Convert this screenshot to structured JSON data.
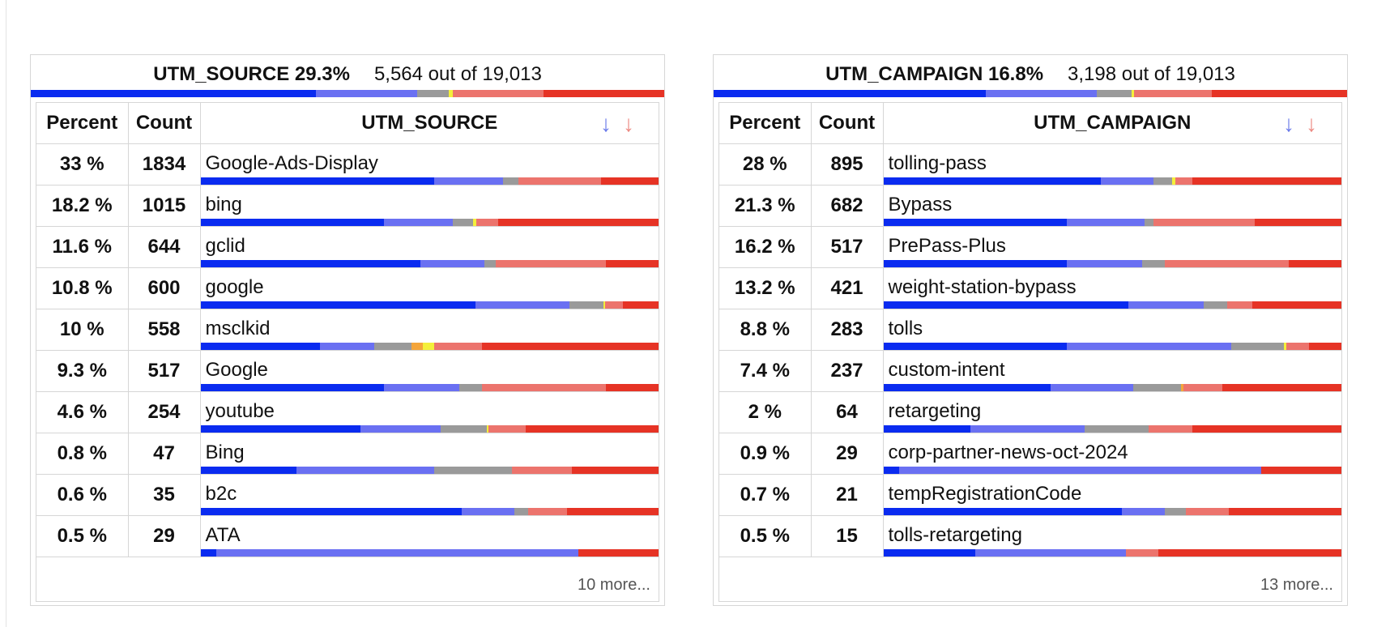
{
  "colors": {
    "accent_blue": "#0a2bf0",
    "light_blue": "#6a70f2",
    "gray": "#9a9a9a",
    "orange": "#f4a53a",
    "yellow": "#f4ef3a",
    "salmon": "#ec746d",
    "red": "#e63325"
  },
  "panels": [
    {
      "title": "UTM_SOURCE 29.3%",
      "fraction": "5,564 out of 19,013",
      "distribution": [
        [
          "blue",
          45
        ],
        [
          "lblue",
          16
        ],
        [
          "gray",
          5
        ],
        [
          "yellow",
          0.6
        ],
        [
          "salmon",
          14.4
        ],
        [
          "red",
          19
        ]
      ],
      "columns": {
        "percent": "Percent",
        "count": "Count",
        "value": "UTM_SOURCE"
      },
      "sort_desc_icon": "arrow-down-icon",
      "sort_asc_icon": "arrow-down-icon",
      "rows": [
        {
          "percent": "33 %",
          "count": "1834",
          "value": "Google-Ads-Display",
          "distribution": [
            [
              "blue",
              51
            ],
            [
              "lblue",
              15
            ],
            [
              "gray",
              3.5
            ],
            [
              "salmon",
              18
            ],
            [
              "red",
              12.5
            ]
          ]
        },
        {
          "percent": "18.2 %",
          "count": "1015",
          "value": "bing",
          "distribution": [
            [
              "blue",
              40
            ],
            [
              "lblue",
              15
            ],
            [
              "gray",
              4.5
            ],
            [
              "yellow",
              0.8
            ],
            [
              "salmon",
              4.7
            ],
            [
              "red",
              35
            ]
          ]
        },
        {
          "percent": "11.6 %",
          "count": "644",
          "value": "gclid",
          "distribution": [
            [
              "blue",
              48
            ],
            [
              "lblue",
              14
            ],
            [
              "gray",
              2.5
            ],
            [
              "salmon",
              24
            ],
            [
              "red",
              11.5
            ]
          ]
        },
        {
          "percent": "10.8 %",
          "count": "600",
          "value": "google",
          "distribution": [
            [
              "blue",
              60
            ],
            [
              "lblue",
              20.5
            ],
            [
              "gray",
              7.5
            ],
            [
              "yellow",
              0.4
            ],
            [
              "salmon",
              3.8
            ],
            [
              "red",
              7.8
            ]
          ]
        },
        {
          "percent": "10 %",
          "count": "558",
          "value": "msclkid",
          "distribution": [
            [
              "blue",
              26
            ],
            [
              "lblue",
              12
            ],
            [
              "gray",
              8
            ],
            [
              "orange",
              2.5
            ],
            [
              "yellow",
              2.5
            ],
            [
              "salmon",
              10.5
            ],
            [
              "red",
              38.5
            ]
          ]
        },
        {
          "percent": "9.3 %",
          "count": "517",
          "value": "Google",
          "distribution": [
            [
              "blue",
              40
            ],
            [
              "lblue",
              16.5
            ],
            [
              "gray",
              5
            ],
            [
              "salmon",
              27
            ],
            [
              "red",
              11.5
            ]
          ]
        },
        {
          "percent": "4.6 %",
          "count": "254",
          "value": "youtube",
          "distribution": [
            [
              "blue",
              35
            ],
            [
              "lblue",
              17.5
            ],
            [
              "gray",
              10
            ],
            [
              "yellow",
              0.4
            ],
            [
              "salmon",
              8.1
            ],
            [
              "red",
              29
            ]
          ]
        },
        {
          "percent": "0.8 %",
          "count": "47",
          "value": "Bing",
          "distribution": [
            [
              "blue",
              21
            ],
            [
              "lblue",
              30
            ],
            [
              "gray",
              17
            ],
            [
              "salmon",
              13
            ],
            [
              "red",
              19
            ]
          ]
        },
        {
          "percent": "0.6 %",
          "count": "35",
          "value": "b2c",
          "distribution": [
            [
              "blue",
              57
            ],
            [
              "lblue",
              11.5
            ],
            [
              "gray",
              3
            ],
            [
              "salmon",
              8.5
            ],
            [
              "red",
              20
            ]
          ]
        },
        {
          "percent": "0.5 %",
          "count": "29",
          "value": "ATA",
          "distribution": [
            [
              "blue",
              3.5
            ],
            [
              "lblue",
              79
            ],
            [
              "red",
              17.5
            ]
          ]
        }
      ],
      "more": "10 more..."
    },
    {
      "title": "UTM_CAMPAIGN 16.8%",
      "fraction": "3,198 out of 19,013",
      "distribution": [
        [
          "blue",
          43
        ],
        [
          "lblue",
          17.5
        ],
        [
          "gray",
          5.5
        ],
        [
          "yellow",
          0.4
        ],
        [
          "salmon",
          12.3
        ],
        [
          "red",
          21.3
        ]
      ],
      "columns": {
        "percent": "Percent",
        "count": "Count",
        "value": "UTM_CAMPAIGN"
      },
      "sort_desc_icon": "arrow-down-icon",
      "sort_asc_icon": "arrow-down-icon",
      "rows": [
        {
          "percent": "28 %",
          "count": "895",
          "value": "tolling-pass",
          "distribution": [
            [
              "blue",
              47.5
            ],
            [
              "lblue",
              11.5
            ],
            [
              "gray",
              4
            ],
            [
              "yellow",
              0.8
            ],
            [
              "salmon",
              3.7
            ],
            [
              "red",
              32.5
            ]
          ]
        },
        {
          "percent": "21.3 %",
          "count": "682",
          "value": "Bypass",
          "distribution": [
            [
              "blue",
              40
            ],
            [
              "lblue",
              17
            ],
            [
              "gray",
              2
            ],
            [
              "salmon",
              22
            ],
            [
              "red",
              19
            ]
          ]
        },
        {
          "percent": "16.2 %",
          "count": "517",
          "value": "PrePass-Plus",
          "distribution": [
            [
              "blue",
              40
            ],
            [
              "lblue",
              16.5
            ],
            [
              "gray",
              5
            ],
            [
              "salmon",
              27
            ],
            [
              "red",
              11.5
            ]
          ]
        },
        {
          "percent": "13.2 %",
          "count": "421",
          "value": "weight-station-bypass",
          "distribution": [
            [
              "blue",
              53.5
            ],
            [
              "lblue",
              16.5
            ],
            [
              "gray",
              5
            ],
            [
              "salmon",
              5.5
            ],
            [
              "red",
              19.5
            ]
          ]
        },
        {
          "percent": "8.8 %",
          "count": "283",
          "value": "tolls",
          "distribution": [
            [
              "blue",
              40
            ],
            [
              "lblue",
              36
            ],
            [
              "gray",
              11.5
            ],
            [
              "yellow",
              0.4
            ],
            [
              "salmon",
              5.1
            ],
            [
              "red",
              7
            ]
          ]
        },
        {
          "percent": "7.4 %",
          "count": "237",
          "value": "custom-intent",
          "distribution": [
            [
              "blue",
              36.5
            ],
            [
              "lblue",
              18
            ],
            [
              "gray",
              10.5
            ],
            [
              "orange",
              0.6
            ],
            [
              "salmon",
              8.4
            ],
            [
              "red",
              26
            ]
          ]
        },
        {
          "percent": "2 %",
          "count": "64",
          "value": "retargeting",
          "distribution": [
            [
              "blue",
              19
            ],
            [
              "lblue",
              25
            ],
            [
              "gray",
              14
            ],
            [
              "salmon",
              9.5
            ],
            [
              "red",
              32.5
            ]
          ]
        },
        {
          "percent": "0.9 %",
          "count": "29",
          "value": "corp-partner-news-oct-2024",
          "distribution": [
            [
              "blue",
              3.5
            ],
            [
              "lblue",
              79
            ],
            [
              "red",
              17.5
            ]
          ]
        },
        {
          "percent": "0.7 %",
          "count": "21",
          "value": "tempRegistrationCode",
          "distribution": [
            [
              "blue",
              52
            ],
            [
              "lblue",
              9.5
            ],
            [
              "gray",
              4.5
            ],
            [
              "salmon",
              9.5
            ],
            [
              "red",
              24.5
            ]
          ]
        },
        {
          "percent": "0.5 %",
          "count": "15",
          "value": "tolls-retargeting",
          "distribution": [
            [
              "blue",
              20
            ],
            [
              "lblue",
              33
            ],
            [
              "salmon",
              7
            ],
            [
              "red",
              40
            ]
          ]
        }
      ],
      "more": "13 more..."
    }
  ]
}
